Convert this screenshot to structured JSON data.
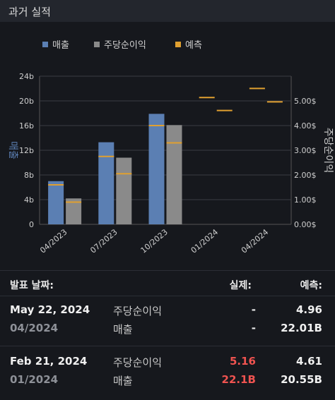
{
  "header": {
    "title": "과거 실적"
  },
  "legend": [
    {
      "label": "매출",
      "color": "#5b7fb3"
    },
    {
      "label": "주당순이익",
      "color": "#8a8a8a"
    },
    {
      "label": "예측",
      "color": "#e0a030"
    }
  ],
  "chart_data": {
    "type": "bar",
    "categories": [
      "04/2023",
      "07/2023",
      "10/2023",
      "01/2024",
      "04/2024"
    ],
    "y_left": {
      "label": "매출",
      "ticks": [
        "0",
        "4b",
        "8b",
        "12b",
        "16b",
        "20b",
        "24b"
      ],
      "ylim": [
        0,
        24
      ]
    },
    "y_right": {
      "label": "주당순이익",
      "ticks": [
        "0.00$",
        "1.00$",
        "2.00$",
        "3.00$",
        "4.00$",
        "5.00$"
      ],
      "ylim": [
        0,
        6
      ]
    },
    "series": [
      {
        "name": "매출",
        "axis": "left",
        "color": "#5b7fb3",
        "values": [
          7.0,
          13.3,
          17.9,
          null,
          null
        ],
        "estimates": [
          6.4,
          11.0,
          16.0,
          20.55,
          22.01
        ]
      },
      {
        "name": "주당순이익",
        "axis": "right",
        "color": "#8a8a8a",
        "values": [
          1.05,
          2.7,
          4.02,
          null,
          null
        ],
        "estimates": [
          0.9,
          2.05,
          3.3,
          4.61,
          4.96
        ]
      }
    ],
    "estimate_color": "#e0a030",
    "grid": true
  },
  "table": {
    "head": {
      "date": "발표 날짜:",
      "actual": "실제:",
      "estimate": "예측:"
    },
    "rows": [
      {
        "date": "May 22, 2024",
        "period": "04/2024",
        "eps_label": "주당순이익",
        "eps_actual": "-",
        "eps_estimate": "4.96",
        "rev_label": "매출",
        "rev_actual": "-",
        "rev_estimate": "22.01B"
      },
      {
        "date": "Feb 21, 2024",
        "period": "01/2024",
        "eps_label": "주당순이익",
        "eps_actual": "5.16",
        "eps_estimate": "4.61",
        "rev_label": "매출",
        "rev_actual": "22.1B",
        "rev_estimate": "20.55B"
      }
    ]
  }
}
